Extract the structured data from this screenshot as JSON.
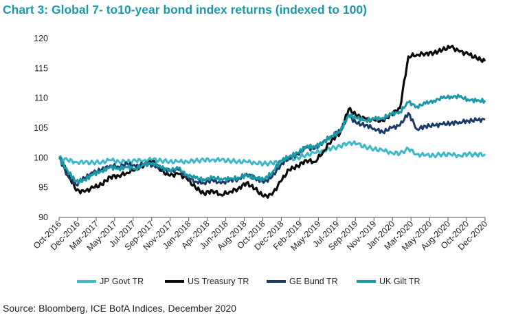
{
  "chart_data": {
    "type": "line",
    "title": "Chart 3: Global 7- to10-year bond index returns (indexed to 100)",
    "source": "Source: Bloomberg, ICE BofA Indices, December 2020",
    "ylim": [
      90,
      120
    ],
    "yticks": [
      "90",
      "95",
      "100",
      "105",
      "110",
      "115",
      "120"
    ],
    "grid": false,
    "legend_position": "bottom",
    "xtick_labels": [
      "Oct-2016",
      "Dec-2016",
      "Mar-2017",
      "May-2017",
      "Jul-2017",
      "Sep-2017",
      "Nov-2017",
      "Jan-2018",
      "Apr-2018",
      "Jun-2018",
      "Aug-2018",
      "Oct-2018",
      "Dec-2018",
      "Feb-2019",
      "May-2019",
      "Jul-2019",
      "Sep-2019",
      "Nov-2019",
      "Jan-2020",
      "Mar-2020",
      "May-2020",
      "Aug-2020",
      "Oct-2020",
      "Dec-2020"
    ],
    "x": [
      "Oct-2016",
      "Nov-2016",
      "Dec-2016",
      "Jan-2017",
      "Feb-2017",
      "Mar-2017",
      "Apr-2017",
      "May-2017",
      "Jun-2017",
      "Jul-2017",
      "Aug-2017",
      "Sep-2017",
      "Oct-2017",
      "Nov-2017",
      "Dec-2017",
      "Jan-2018",
      "Feb-2018",
      "Mar-2018",
      "Apr-2018",
      "May-2018",
      "Jun-2018",
      "Jul-2018",
      "Aug-2018",
      "Sep-2018",
      "Oct-2018",
      "Nov-2018",
      "Dec-2018",
      "Jan-2019",
      "Feb-2019",
      "Mar-2019",
      "Apr-2019",
      "May-2019",
      "Jun-2019",
      "Jul-2019",
      "Aug-2019",
      "Sep-2019",
      "Oct-2019",
      "Nov-2019",
      "Dec-2019",
      "Jan-2020",
      "Feb-2020",
      "Mar-2020",
      "Apr-2020",
      "May-2020",
      "Jun-2020",
      "Jul-2020",
      "Aug-2020",
      "Sep-2020",
      "Oct-2020",
      "Nov-2020",
      "Dec-2020"
    ],
    "series": [
      {
        "name": "JP Govt TR",
        "color": "#3cb8c8",
        "values": [
          100,
          99.6,
          99.3,
          99.2,
          99.2,
          99.3,
          99.6,
          99.4,
          99.3,
          99.5,
          99.6,
          99.7,
          99.5,
          99.4,
          99.3,
          99.4,
          99.5,
          99.6,
          99.7,
          99.6,
          99.5,
          99.4,
          99.3,
          99.2,
          99.0,
          99.1,
          99.3,
          99.7,
          100.0,
          100.5,
          100.8,
          101.2,
          101.6,
          101.9,
          102.6,
          102.3,
          101.8,
          101.5,
          101.2,
          100.9,
          100.7,
          101.5,
          100.6,
          100.4,
          100.4,
          100.6,
          100.5,
          100.4,
          100.6,
          100.5,
          100.6
        ]
      },
      {
        "name": "US Treasury TR",
        "color": "#0a0a0a",
        "values": [
          100,
          97.5,
          94.5,
          94.3,
          95.0,
          95.5,
          96.8,
          97.0,
          97.5,
          98.2,
          98.8,
          99.4,
          97.8,
          97.0,
          97.3,
          96.5,
          95.0,
          94.0,
          94.5,
          93.8,
          94.3,
          94.8,
          95.8,
          94.8,
          93.5,
          93.8,
          96.0,
          98.0,
          98.6,
          99.6,
          99.3,
          101.0,
          103.0,
          104.2,
          108.2,
          107.0,
          106.5,
          106.3,
          106.2,
          107.3,
          108.3,
          117.0,
          117.3,
          117.5,
          117.6,
          118.1,
          118.6,
          117.8,
          117.4,
          116.7,
          116.2
        ]
      },
      {
        "name": "GE Bund TR",
        "color": "#1b3a66",
        "values": [
          100,
          97.0,
          95.5,
          96.6,
          97.5,
          98.0,
          98.7,
          98.5,
          99.0,
          98.5,
          99.0,
          98.8,
          98.2,
          97.8,
          98.0,
          96.8,
          96.0,
          95.8,
          96.3,
          95.7,
          96.2,
          96.4,
          97.3,
          96.6,
          95.8,
          96.8,
          98.8,
          100.0,
          100.6,
          101.7,
          101.5,
          102.7,
          103.7,
          104.6,
          107.0,
          105.7,
          105.5,
          104.9,
          104.3,
          105.0,
          105.4,
          107.5,
          104.8,
          105.3,
          105.4,
          105.6,
          105.8,
          106.0,
          106.2,
          106.3,
          106.4
        ]
      },
      {
        "name": "UK Gilt TR",
        "color": "#1a9aa8",
        "values": [
          100,
          97.8,
          96.0,
          96.3,
          97.2,
          97.8,
          98.4,
          98.2,
          98.4,
          98.2,
          98.8,
          99.2,
          98.3,
          98.0,
          98.2,
          97.2,
          96.6,
          96.4,
          96.6,
          96.5,
          96.4,
          96.7,
          97.0,
          96.7,
          96.3,
          97.5,
          99.5,
          100.2,
          100.8,
          101.9,
          101.8,
          102.5,
          103.7,
          104.4,
          107.2,
          106.6,
          106.3,
          106.5,
          106.7,
          107.3,
          107.7,
          109.3,
          108.6,
          109.1,
          109.6,
          110.0,
          110.3,
          110.2,
          109.8,
          109.5,
          109.6
        ]
      }
    ]
  }
}
